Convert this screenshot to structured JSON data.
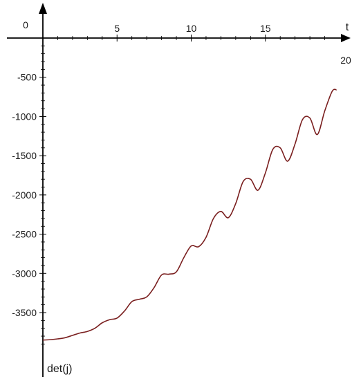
{
  "chart_data": {
    "type": "line",
    "title": "",
    "xlabel": "t",
    "ylabel": "det(j)",
    "xlim": [
      0,
      20
    ],
    "ylim": [
      -4000,
      0
    ],
    "x_ticks": [
      0,
      5,
      10,
      15,
      20
    ],
    "x_tick_labels": [
      "0",
      "5",
      "10",
      "15",
      "20"
    ],
    "y_ticks": [
      -500,
      -1000,
      -1500,
      -2000,
      -2500,
      -3000,
      -3500
    ],
    "y_tick_labels": [
      "-500",
      "-1000",
      "-1500",
      "-2000",
      "-2500",
      "-3000",
      "-3500"
    ],
    "grid": false,
    "line_color": "#7a1f1f",
    "series": [
      {
        "x": [
          0,
          0.5,
          1.0,
          1.5,
          2.0,
          2.5,
          3.0,
          3.5,
          4.0,
          4.5,
          5.0,
          5.5,
          6.0,
          6.5,
          7.0,
          7.5,
          8.0,
          8.5,
          9.0,
          9.5,
          10.0,
          10.5,
          11.0,
          11.5,
          12.0,
          12.5,
          13.0,
          13.5,
          14.0,
          14.5,
          15.0,
          15.5,
          16.0,
          16.5,
          17.0,
          17.5,
          18.0,
          18.5,
          19.0,
          19.5,
          19.8
        ],
        "y": [
          -3850,
          -3845,
          -3835,
          -3820,
          -3790,
          -3760,
          -3740,
          -3700,
          -3630,
          -3590,
          -3570,
          -3480,
          -3360,
          -3330,
          -3300,
          -3180,
          -3020,
          -3010,
          -2980,
          -2800,
          -2650,
          -2660,
          -2540,
          -2300,
          -2210,
          -2290,
          -2110,
          -1830,
          -1800,
          -1940,
          -1720,
          -1420,
          -1400,
          -1570,
          -1350,
          -1040,
          -1020,
          -1230,
          -930,
          -680,
          -660
        ]
      }
    ]
  }
}
